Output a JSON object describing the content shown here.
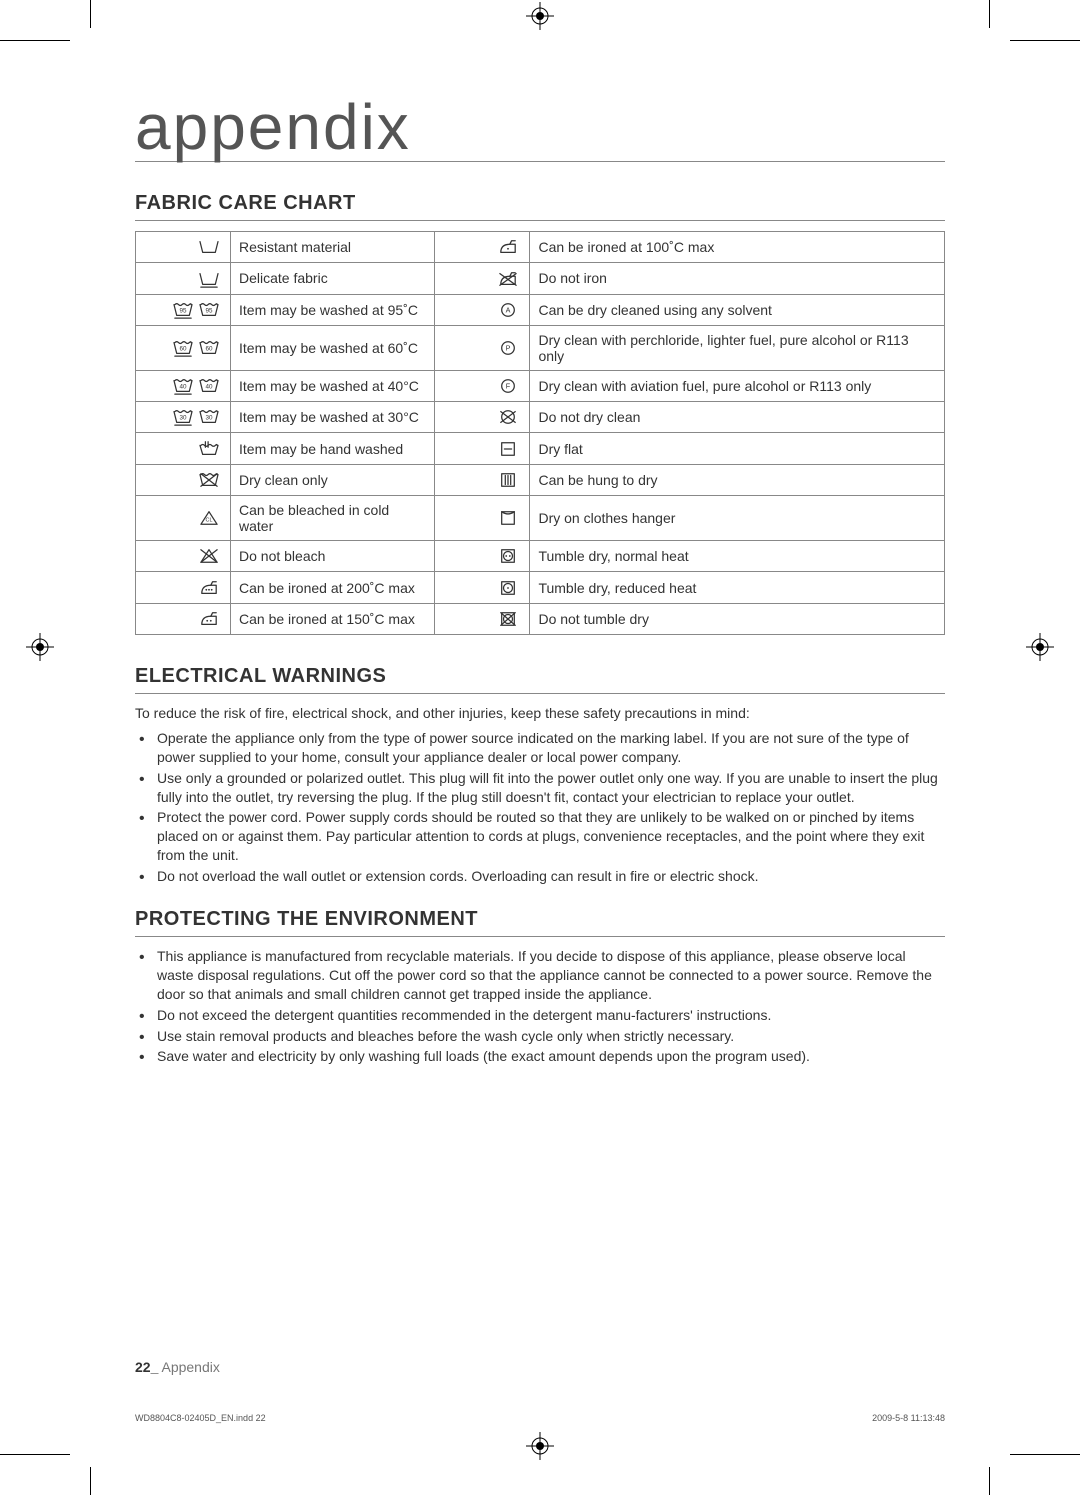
{
  "title": "appendix",
  "sections": {
    "fabric": {
      "heading": "FABRIC CARE CHART",
      "rows": [
        {
          "l": "Resistant material",
          "r": "Can be ironed at 100˚C max"
        },
        {
          "l": "Delicate fabric",
          "r": "Do not iron"
        },
        {
          "l": "Item may be washed at 95˚C",
          "r": "Can be dry cleaned using any solvent"
        },
        {
          "l": "Item may be washed at 60˚C",
          "r": "Dry clean with perchloride, lighter fuel, pure alcohol or R113 only"
        },
        {
          "l": "Item may be washed at 40°C",
          "r": "Dry clean with aviation fuel, pure alcohol or R113 only"
        },
        {
          "l": "Item may be washed at 30°C",
          "r": "Do not dry clean"
        },
        {
          "l": "Item may be hand washed",
          "r": "Dry flat"
        },
        {
          "l": "Dry clean only",
          "r": "Can be hung to dry"
        },
        {
          "l": "Can be bleached in cold water",
          "r": "Dry on clothes hanger"
        },
        {
          "l": "Do not bleach",
          "r": "Tumble dry, normal heat"
        },
        {
          "l": "Can be ironed at 200˚C max",
          "r": "Tumble dry, reduced heat"
        },
        {
          "l": "Can be ironed at 150˚C max",
          "r": "Do not tumble dry"
        }
      ]
    },
    "electrical": {
      "heading": "ELECTRICAL WARNINGS",
      "intro": "To reduce the risk of fire, electrical shock, and other injuries, keep these safety precautions in mind:",
      "items": [
        "Operate the appliance only from the type of power source indicated on the marking label. If you are not sure of the type of power supplied to your home, consult your appliance dealer or local power company.",
        "Use only a grounded or polarized outlet. This plug will fit into the power outlet only one way. If you are unable to insert the plug fully into the outlet, try reversing the plug. If the plug still doesn't fit, contact your electrician to replace your outlet.",
        "Protect the power cord. Power supply cords should be routed so that they are unlikely to be walked on or pinched by items placed on or against them. Pay particular attention to cords at plugs, convenience receptacles, and the point where they exit from the unit.",
        "Do not overload the wall outlet or extension cords. Overloading can result in fire or electric shock."
      ]
    },
    "environment": {
      "heading": "PROTECTING THE ENVIRONMENT",
      "items": [
        "This appliance is manufactured from recyclable materials. If you decide to dispose of this appliance, please observe local waste disposal regulations. Cut off the power cord so that the appliance cannot be connected to a power source. Remove the door so that animals and small children cannot get trapped inside the appliance.",
        "Do not exceed the detergent quantities recommended in the detergent manu-facturers' instructions.",
        "Use stain removal products and bleaches before the wash cycle only when strictly necessary.",
        "Save water and electricity by only washing full loads (the exact amount depends upon the program used)."
      ]
    }
  },
  "footer": {
    "page_num": "22_",
    "label": " Appendix"
  },
  "indd": {
    "file": "WD8804C8-02405D_EN.indd   22",
    "date": "2009-5-8   11:13:48"
  },
  "icons": {
    "wash_tub_num": [
      "95",
      "60",
      "40",
      "30"
    ]
  },
  "style": {
    "title_color": "#555",
    "border_color": "#888",
    "text_color": "#333",
    "font_size_body": 14,
    "font_size_title": 64,
    "font_size_heading": 20
  }
}
